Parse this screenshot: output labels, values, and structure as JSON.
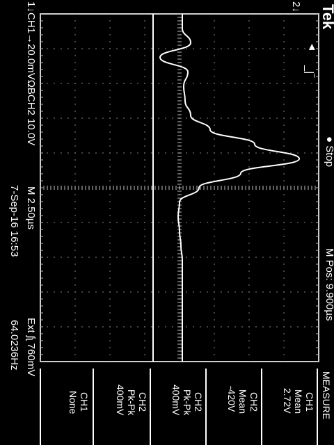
{
  "scope": {
    "brand": "Tek",
    "run_state": "Stop",
    "horizontal_position": "M Pos: 9.900µs",
    "channel_scales": "CH1→20.0mVΩΒCH2  10.0V",
    "timebase": "M 2.50µs",
    "trigger_info": "Ext ʃʅ 760mV",
    "date_time": "7-Sep-16 16:53",
    "frequency": "64.0236Hz",
    "ch1_marker": "1↓",
    "ch2_marker": "2↓",
    "trigger_marker": "◄",
    "trigger_edge": "_|‾"
  },
  "measure": {
    "title": "MEASURE",
    "items": [
      {
        "source": "CH1",
        "type": "Mean",
        "value": "2.72V"
      },
      {
        "source": "CH2",
        "type": "Mean",
        "value": "-420V"
      },
      {
        "source": "CH2",
        "type": "Pk-Pk",
        "value": "400mV"
      },
      {
        "source": "CH2",
        "type": "Pk-Pk",
        "value": "400mV"
      },
      {
        "source": "CH1",
        "type": "None",
        "value": ""
      }
    ]
  },
  "colors": {
    "background": "#000000",
    "trace": "#ffffff",
    "grid": "#cfcfcf"
  },
  "chart_data": {
    "type": "line",
    "series": [
      {
        "name": "",
        "values": [
          0,
          0,
          0,
          0,
          0,
          0,
          0,
          0,
          0,
          0,
          0,
          0
        ]
      },
      {
        "name": "",
        "values": [
          0,
          0,
          0.3,
          -0.8,
          0.2,
          0.05,
          0.1,
          0.3,
          1.0,
          2.6,
          4.2,
          2.1,
          0.6,
          -0.1,
          -0.15,
          -0.1,
          -0.05,
          0,
          0,
          0,
          0,
          0,
          0,
          0,
          0
        ]
      }
    ]
  }
}
